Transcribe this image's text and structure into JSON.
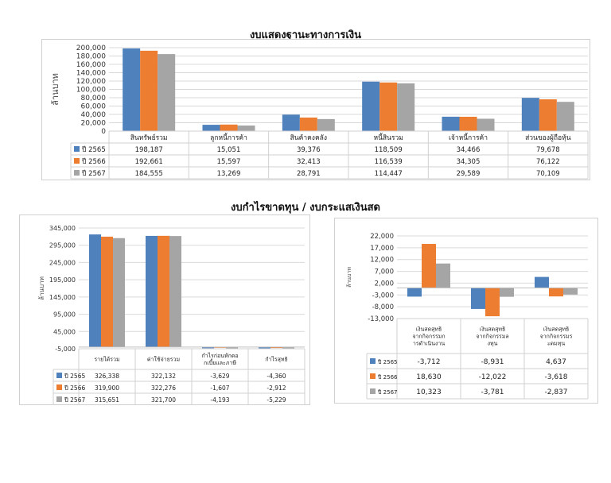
{
  "titles": {
    "balance": "งบแสดงฐานะทางการเงิน",
    "income_cash": "งบกำไรขาดทุน / งบกระแสเงินสด"
  },
  "colors": {
    "s2565": "#4F81BD",
    "s2566": "#ED7D31",
    "s2567": "#A5A5A5"
  },
  "chart_data": [
    {
      "id": "balance",
      "type": "bar",
      "title": "",
      "ylabel": "ล้านบาท",
      "ylim": [
        0,
        200000
      ],
      "yticks": [
        "200,000",
        "180,000",
        "160,000",
        "140,000",
        "120,000",
        "100,000",
        "80,000",
        "60,000",
        "40,000",
        "20,000",
        "0"
      ],
      "categories": [
        "สินทรัพย์รวม",
        "ลูกหนี้การค้า",
        "สินค้าคงคลัง",
        "หนี้สินรวม",
        "เจ้าหนี้การค้า",
        "ส่วนของผู้ถือหุ้น"
      ],
      "series": [
        {
          "name": "ปี 2565",
          "values": [
            198187,
            15051,
            39376,
            118509,
            34466,
            79678
          ],
          "labels": [
            "198,187",
            "15,051",
            "39,376",
            "118,509",
            "34,466",
            "79,678"
          ]
        },
        {
          "name": "ปี 2566",
          "values": [
            192661,
            15597,
            32413,
            116539,
            34305,
            76122
          ],
          "labels": [
            "192,661",
            "15,597",
            "32,413",
            "116,539",
            "34,305",
            "76,122"
          ]
        },
        {
          "name": "ปี 2567",
          "values": [
            184555,
            13269,
            28791,
            114447,
            29589,
            70109
          ],
          "labels": [
            "184,555",
            "13,269",
            "28,791",
            "114,447",
            "29,589",
            "70,109"
          ]
        }
      ]
    },
    {
      "id": "income",
      "type": "bar",
      "title": "",
      "ylabel": "ล้านบาท",
      "ylim": [
        -5000,
        345000
      ],
      "yticks": [
        "345,000",
        "295,000",
        "245,000",
        "195,000",
        "145,000",
        "95,000",
        "45,000",
        "-5,000"
      ],
      "categories": [
        "รายได้รวม",
        "ค่าใช้จ่ายรวม",
        "กำไรก่อนหักดอกเบี้ยและภาษี",
        "กำไรสุทธิ"
      ],
      "series": [
        {
          "name": "ปี 2565",
          "values": [
            326338,
            322132,
            -3629,
            -4360
          ],
          "labels": [
            "326,338",
            "322,132",
            "-3,629",
            "-4,360"
          ]
        },
        {
          "name": "ปี 2566",
          "values": [
            319900,
            322276,
            -1607,
            -2912
          ],
          "labels": [
            "319,900",
            "322,276",
            "-1,607",
            "-2,912"
          ]
        },
        {
          "name": "ปี 2567",
          "values": [
            315651,
            321700,
            -4193,
            -5229
          ],
          "labels": [
            "315,651",
            "321,700",
            "-4,193",
            "-5,229"
          ]
        }
      ]
    },
    {
      "id": "cash",
      "type": "bar",
      "title": "",
      "ylabel": "ล้านบาท",
      "ylim": [
        -13000,
        22000
      ],
      "yticks": [
        "22,000",
        "17,000",
        "12,000",
        "7,000",
        "2,000",
        "-3,000",
        "-8,000",
        "-13,000"
      ],
      "categories": [
        "เงินสดสุทธิจากกิจกรรมการดำเนินงาน",
        "เงินสดสุทธิจากกิจกรรมลงทุน",
        "เงินสดสุทธิจากกิจกรรมระดมทุน"
      ],
      "series": [
        {
          "name": "ปี 2565",
          "values": [
            -3712,
            -8931,
            4637
          ],
          "labels": [
            "-3,712",
            "-8,931",
            "4,637"
          ]
        },
        {
          "name": "ปี 2566",
          "values": [
            18630,
            -12022,
            -3618
          ],
          "labels": [
            "18,630",
            "-12,022",
            "-3,618"
          ]
        },
        {
          "name": "ปี 2567",
          "values": [
            10323,
            -3781,
            -2837
          ],
          "labels": [
            "10,323",
            "-3,781",
            "-2,837"
          ]
        }
      ]
    }
  ]
}
